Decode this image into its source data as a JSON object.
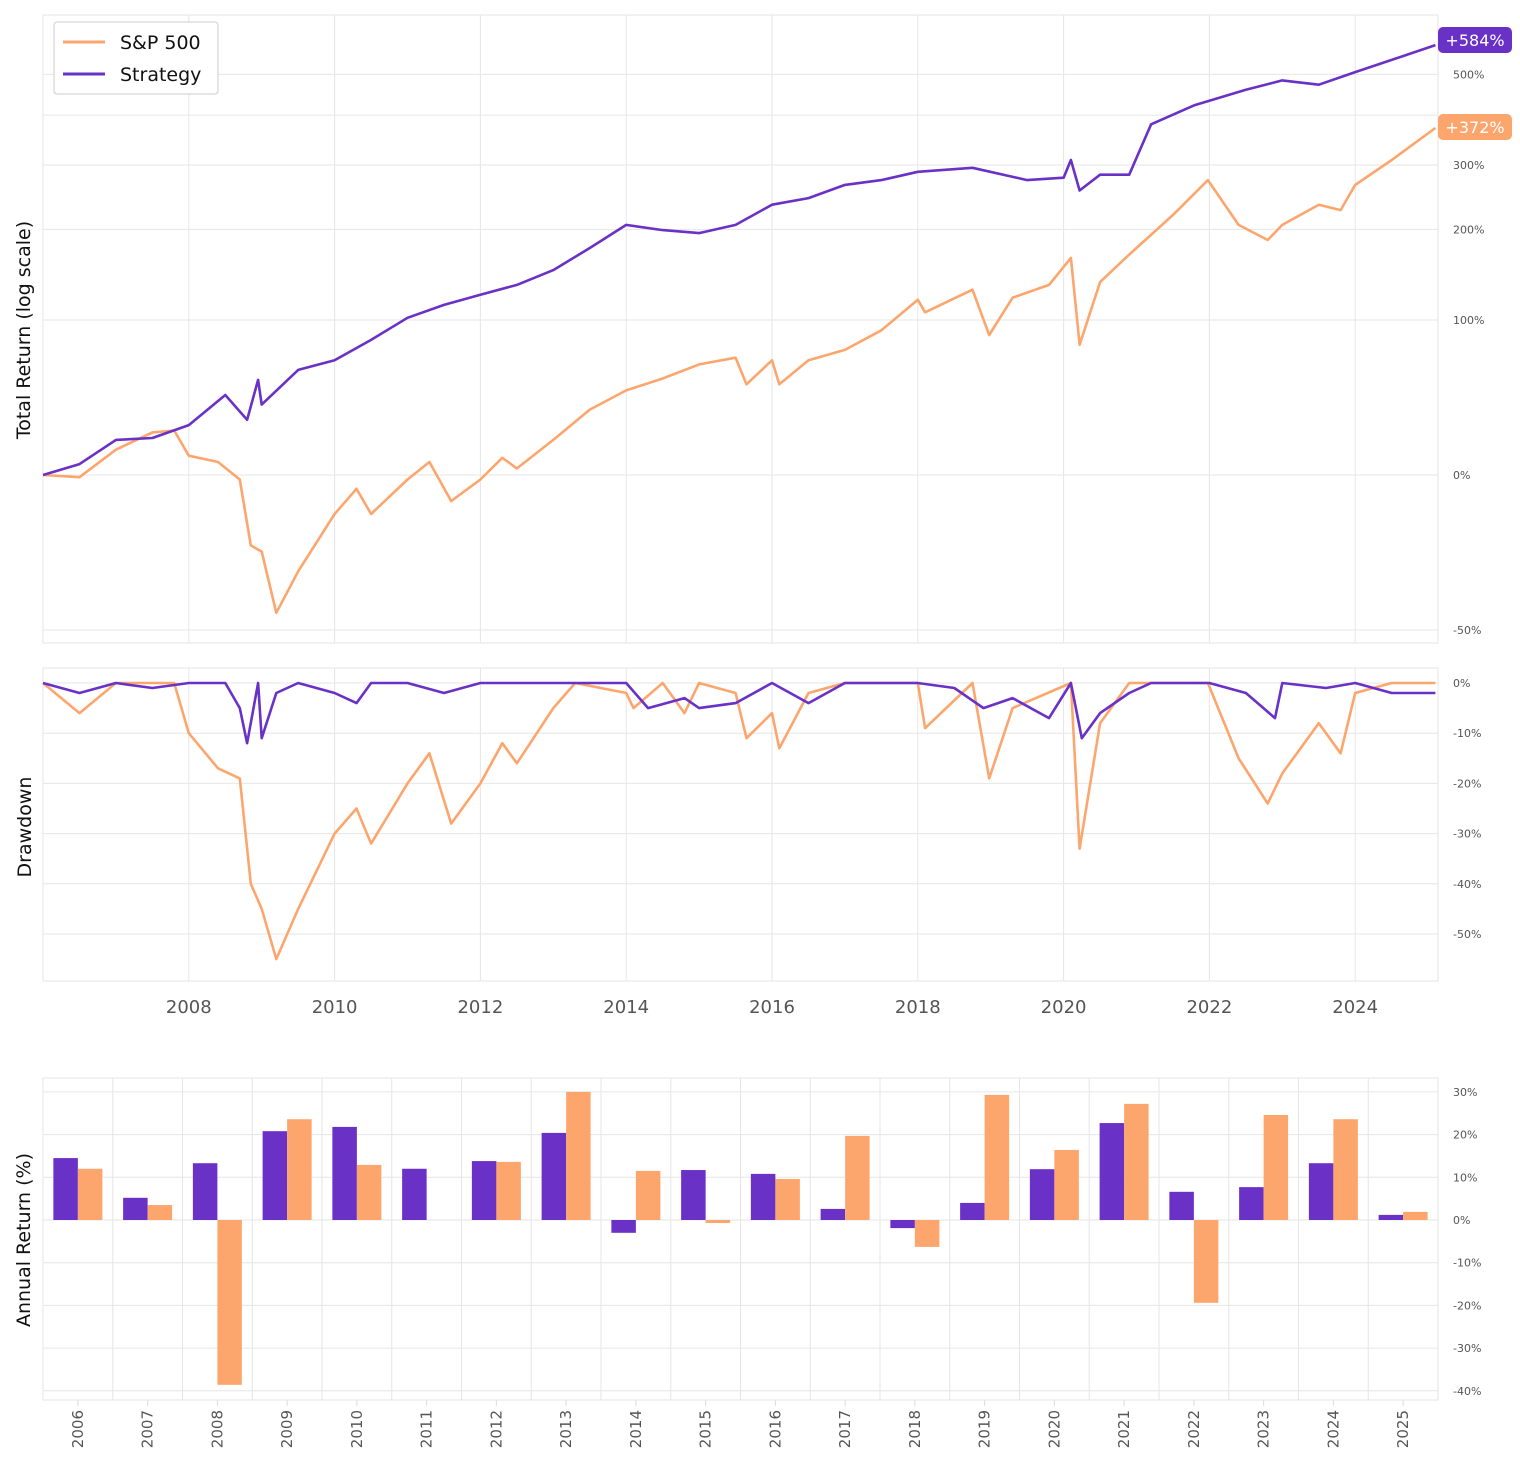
{
  "colors": {
    "strategy": "#6a31c6",
    "sp500": "#fca66e"
  },
  "chart_data": [
    {
      "type": "line",
      "ylabel": "Total Return (log scale)",
      "yscale": "log",
      "grid": true,
      "legend": "top-left",
      "yticks": [
        "-50%",
        "0%",
        "100%",
        "200%",
        "300%",
        "500%"
      ],
      "ytick_values": [
        -50,
        0,
        100,
        200,
        300,
        500
      ],
      "end_labels": {
        "strategy": "+584%",
        "sp500": "+372%"
      },
      "series": [
        {
          "name": "S&P 500",
          "key": "sp500",
          "x": [
            2006.0,
            2006.5,
            2007.0,
            2007.5,
            2007.8,
            2008.0,
            2008.4,
            2008.7,
            2008.85,
            2009.0,
            2009.2,
            2009.5,
            2010.0,
            2010.3,
            2010.5,
            2011.0,
            2011.3,
            2011.6,
            2012.0,
            2012.3,
            2012.5,
            2013.0,
            2013.5,
            2014.0,
            2014.5,
            2015.0,
            2015.5,
            2015.65,
            2016.0,
            2016.1,
            2016.5,
            2017.0,
            2017.5,
            2018.0,
            2018.1,
            2018.75,
            2018.98,
            2019.3,
            2019.8,
            2020.1,
            2020.22,
            2020.5,
            2020.9,
            2021.5,
            2021.98,
            2022.4,
            2022.8,
            2023.0,
            2023.5,
            2023.8,
            2024.0,
            2024.5,
            2025.1
          ],
          "y": [
            0,
            -1,
            12,
            21,
            22,
            9,
            6,
            -2,
            -27,
            -29,
            -46,
            -35,
            -16,
            -6,
            -16,
            -2,
            6,
            -11,
            -2,
            8,
            3,
            17,
            34,
            46,
            54,
            64,
            69,
            50,
            67,
            50,
            67,
            75,
            91,
            119,
            107,
            129,
            87,
            121,
            134,
            164,
            79,
            137,
            168,
            220,
            274,
            206,
            186,
            206,
            235,
            227,
            266,
            309,
            372
          ]
        },
        {
          "name": "Strategy",
          "key": "strategy",
          "x": [
            2006.0,
            2006.5,
            2007.0,
            2007.5,
            2008.0,
            2008.5,
            2008.8,
            2008.95,
            2009.0,
            2009.5,
            2010.0,
            2010.5,
            2011.0,
            2011.5,
            2012.0,
            2012.5,
            2013.0,
            2013.5,
            2014.0,
            2014.5,
            2015.0,
            2015.5,
            2016.0,
            2016.5,
            2017.0,
            2017.5,
            2018.0,
            2018.75,
            2019.5,
            2020.0,
            2020.1,
            2020.22,
            2020.5,
            2020.9,
            2021.2,
            2021.8,
            2022.5,
            2023.0,
            2023.5,
            2024.0,
            2024.5,
            2025.1
          ],
          "y": [
            0,
            5,
            17,
            18,
            25,
            43,
            28,
            53,
            37,
            60,
            67,
            83,
            102,
            114,
            124,
            134,
            150,
            176,
            206,
            199,
            195,
            206,
            235,
            245,
            266,
            274,
            288,
            295,
            274,
            278,
            309,
            257,
            283,
            283,
            380,
            423,
            460,
            484,
            473,
            506,
            540,
            584
          ]
        }
      ]
    },
    {
      "type": "line",
      "ylabel": "Drawdown",
      "grid": true,
      "yticks": [
        "0%",
        "-10%",
        "-20%",
        "-30%",
        "-40%",
        "-50%"
      ],
      "ytick_values": [
        0,
        -10,
        -20,
        -30,
        -40,
        -50
      ],
      "xticks": [
        "2008",
        "2010",
        "2012",
        "2014",
        "2016",
        "2018",
        "2020",
        "2022",
        "2024"
      ],
      "series": [
        {
          "name": "S&P 500",
          "key": "sp500",
          "x": [
            2006.0,
            2006.5,
            2007.0,
            2007.5,
            2007.8,
            2008.0,
            2008.4,
            2008.7,
            2008.85,
            2009.0,
            2009.2,
            2009.5,
            2010.0,
            2010.3,
            2010.5,
            2011.0,
            2011.3,
            2011.6,
            2012.0,
            2012.3,
            2012.5,
            2013.0,
            2013.3,
            2014.0,
            2014.1,
            2014.5,
            2014.8,
            2015.0,
            2015.5,
            2015.65,
            2016.0,
            2016.1,
            2016.5,
            2017.0,
            2018.0,
            2018.1,
            2018.75,
            2018.98,
            2019.3,
            2020.1,
            2020.22,
            2020.5,
            2020.9,
            2021.5,
            2021.98,
            2022.4,
            2022.8,
            2023.0,
            2023.5,
            2023.8,
            2024.0,
            2024.5,
            2025.1
          ],
          "y": [
            0,
            -6,
            0,
            0,
            0,
            -10,
            -17,
            -19,
            -40,
            -45,
            -55,
            -45,
            -30,
            -25,
            -32,
            -20,
            -14,
            -28,
            -20,
            -12,
            -16,
            -5,
            0,
            -2,
            -5,
            0,
            -6,
            0,
            -2,
            -11,
            -6,
            -13,
            -2,
            0,
            0,
            -9,
            0,
            -19,
            -5,
            0,
            -33,
            -8,
            0,
            0,
            0,
            -15,
            -24,
            -18,
            -8,
            -14,
            -2,
            0,
            0
          ]
        },
        {
          "name": "Strategy",
          "key": "strategy",
          "x": [
            2006.0,
            2006.5,
            2007.0,
            2007.5,
            2008.0,
            2008.5,
            2008.7,
            2008.8,
            2008.95,
            2009.0,
            2009.2,
            2009.5,
            2010.0,
            2010.3,
            2010.5,
            2011.0,
            2011.5,
            2012.0,
            2012.5,
            2013.0,
            2014.0,
            2014.3,
            2014.8,
            2015.0,
            2015.5,
            2016.0,
            2016.5,
            2017.0,
            2018.0,
            2018.5,
            2018.9,
            2019.3,
            2019.8,
            2020.1,
            2020.25,
            2020.5,
            2020.9,
            2021.2,
            2022.0,
            2022.5,
            2022.9,
            2023.0,
            2023.6,
            2024.0,
            2024.5,
            2025.1
          ],
          "y": [
            0,
            -2,
            0,
            -1,
            0,
            0,
            -5,
            -12,
            0,
            -11,
            -2,
            0,
            -2,
            -4,
            0,
            0,
            -2,
            0,
            0,
            0,
            0,
            -5,
            -3,
            -5,
            -4,
            0,
            -4,
            0,
            0,
            -1,
            -5,
            -3,
            -7,
            0,
            -11,
            -6,
            -2,
            0,
            0,
            -2,
            -7,
            0,
            -1,
            0,
            -2,
            -2
          ]
        }
      ]
    },
    {
      "type": "bar",
      "ylabel": "Annual Return (%)",
      "grid": true,
      "yticks": [
        "30%",
        "20%",
        "10%",
        "0%",
        "-10%",
        "-20%",
        "-30%",
        "-40%"
      ],
      "ytick_values": [
        30,
        20,
        10,
        0,
        -10,
        -20,
        -30,
        -40
      ],
      "categories": [
        "2006",
        "2007",
        "2008",
        "2009",
        "2010",
        "2011",
        "2012",
        "2013",
        "2014",
        "2015",
        "2016",
        "2017",
        "2018",
        "2019",
        "2020",
        "2021",
        "2022",
        "2023",
        "2024",
        "2025"
      ],
      "series": [
        {
          "name": "Strategy",
          "key": "strategy",
          "values": [
            14.5,
            5.2,
            13.3,
            20.8,
            21.8,
            12.0,
            13.8,
            20.4,
            -3.0,
            11.7,
            10.8,
            2.6,
            -1.9,
            4.0,
            11.9,
            22.7,
            6.6,
            7.7,
            13.3,
            1.2
          ]
        },
        {
          "name": "S&P 500",
          "key": "sp500",
          "values": [
            12.0,
            3.5,
            -38.6,
            23.6,
            12.9,
            0,
            13.6,
            30.0,
            11.5,
            -0.7,
            9.6,
            19.7,
            -6.3,
            29.3,
            16.4,
            27.2,
            -19.4,
            24.6,
            23.6,
            1.9
          ]
        }
      ]
    }
  ]
}
